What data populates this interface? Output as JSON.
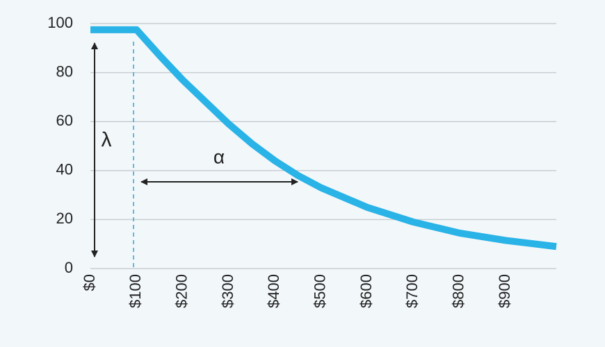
{
  "chart_data": {
    "type": "line",
    "annotations": [
      "λ",
      "α"
    ],
    "x": [
      0,
      100,
      150,
      200,
      250,
      300,
      350,
      400,
      450,
      500,
      600,
      700,
      800,
      900,
      1010
    ],
    "series": [
      {
        "color": "#29b3e6",
        "values": [
          97.5,
          97.5,
          87,
          77,
          68,
          59,
          51,
          44,
          38,
          33,
          25,
          19,
          14.5,
          11.5,
          9
        ]
      }
    ],
    "xlim": [
      0,
      1010
    ],
    "ylim": [
      0,
      100
    ],
    "xticks": [
      {
        "value": 0,
        "label": "$0"
      },
      {
        "value": 100,
        "label": "$100"
      },
      {
        "value": 200,
        "label": "$200"
      },
      {
        "value": 300,
        "label": "$300"
      },
      {
        "value": 400,
        "label": "$400"
      },
      {
        "value": 500,
        "label": "$500"
      },
      {
        "value": 600,
        "label": "$600"
      },
      {
        "value": 700,
        "label": "$700"
      },
      {
        "value": 800,
        "label": "$800"
      },
      {
        "value": 900,
        "label": "$900"
      }
    ],
    "yticks": [
      0,
      20,
      40,
      60,
      80,
      100
    ],
    "grid": true
  }
}
